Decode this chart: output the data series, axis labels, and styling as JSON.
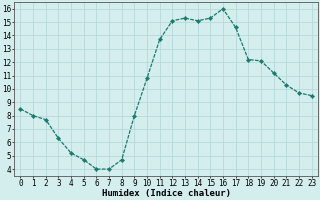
{
  "x": [
    0,
    1,
    2,
    3,
    4,
    5,
    6,
    7,
    8,
    9,
    10,
    11,
    12,
    13,
    14,
    15,
    16,
    17,
    18,
    19,
    20,
    21,
    22,
    23
  ],
  "y": [
    8.5,
    8.0,
    7.7,
    6.3,
    5.2,
    4.7,
    4.0,
    4.0,
    4.7,
    8.0,
    10.8,
    13.7,
    15.1,
    15.3,
    15.1,
    15.3,
    16.0,
    14.6,
    12.2,
    12.1,
    11.2,
    10.3,
    9.7,
    9.5
  ],
  "line_color": "#1a7a6e",
  "marker": "D",
  "marker_size": 2.2,
  "bg_color": "#d4eeee",
  "grid_color": "#b8d8d8",
  "xlabel": "Humidex (Indice chaleur)",
  "xlim": [
    -0.5,
    23.5
  ],
  "ylim": [
    3.5,
    16.5
  ],
  "xtick_labels": [
    "0",
    "1",
    "2",
    "3",
    "4",
    "5",
    "6",
    "7",
    "8",
    "9",
    "10",
    "11",
    "12",
    "13",
    "14",
    "15",
    "16",
    "17",
    "18",
    "19",
    "20",
    "21",
    "22",
    "23"
  ],
  "ytick_values": [
    4,
    5,
    6,
    7,
    8,
    9,
    10,
    11,
    12,
    13,
    14,
    15,
    16
  ],
  "tick_fontsize": 5.5,
  "xlabel_fontsize": 6.5
}
